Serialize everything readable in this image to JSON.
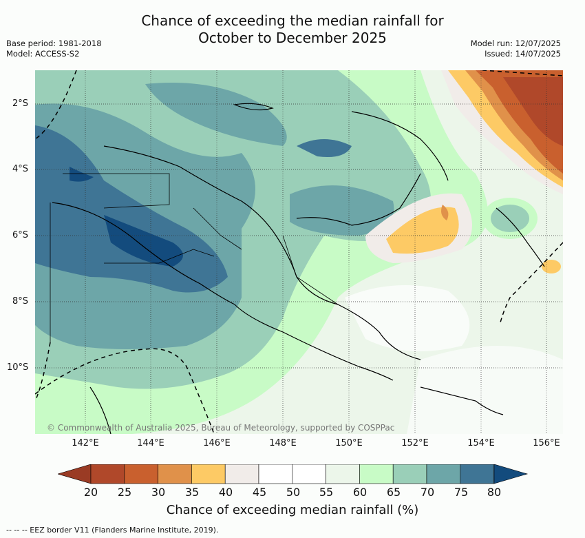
{
  "header": {
    "title_line1": "Chance of exceeding the median rainfall for",
    "title_line2": "October to December 2025",
    "base_period": "Base period: 1981-2018",
    "model": "Model: ACCESS-S2",
    "model_run": "Model run: 12/07/2025",
    "issued": "Issued: 14/07/2025"
  },
  "map": {
    "lat_ticks": [
      "2°S",
      "4°S",
      "6°S",
      "8°S",
      "10°S"
    ],
    "lon_ticks": [
      "142°E",
      "144°E",
      "146°E",
      "148°E",
      "150°E",
      "152°E",
      "154°E",
      "156°E"
    ],
    "credit": "© Commonwealth of Australia 2025, Bureau of Meteorology, supported by COSPPac"
  },
  "colorbar": {
    "title": "Chance of exceeding median rainfall (%)",
    "labels": [
      "20",
      "25",
      "30",
      "35",
      "40",
      "45",
      "50",
      "55",
      "60",
      "65",
      "70",
      "75",
      "80"
    ],
    "colors": [
      "#b0482a",
      "#c9602e",
      "#e0914a",
      "#fdca65",
      "#f1ece9",
      "#ffffff",
      "#ffffff",
      "#ecf6ea",
      "#c8fbc6",
      "#9acfb8",
      "#6da6a8",
      "#3f7595"
    ],
    "low_extend_color": "#9a3b24",
    "high_extend_color": "#134b7d"
  },
  "legend": {
    "eez_note": "--  --  -- EEZ border V11 (Flanders Marine Institute, 2019)."
  }
}
